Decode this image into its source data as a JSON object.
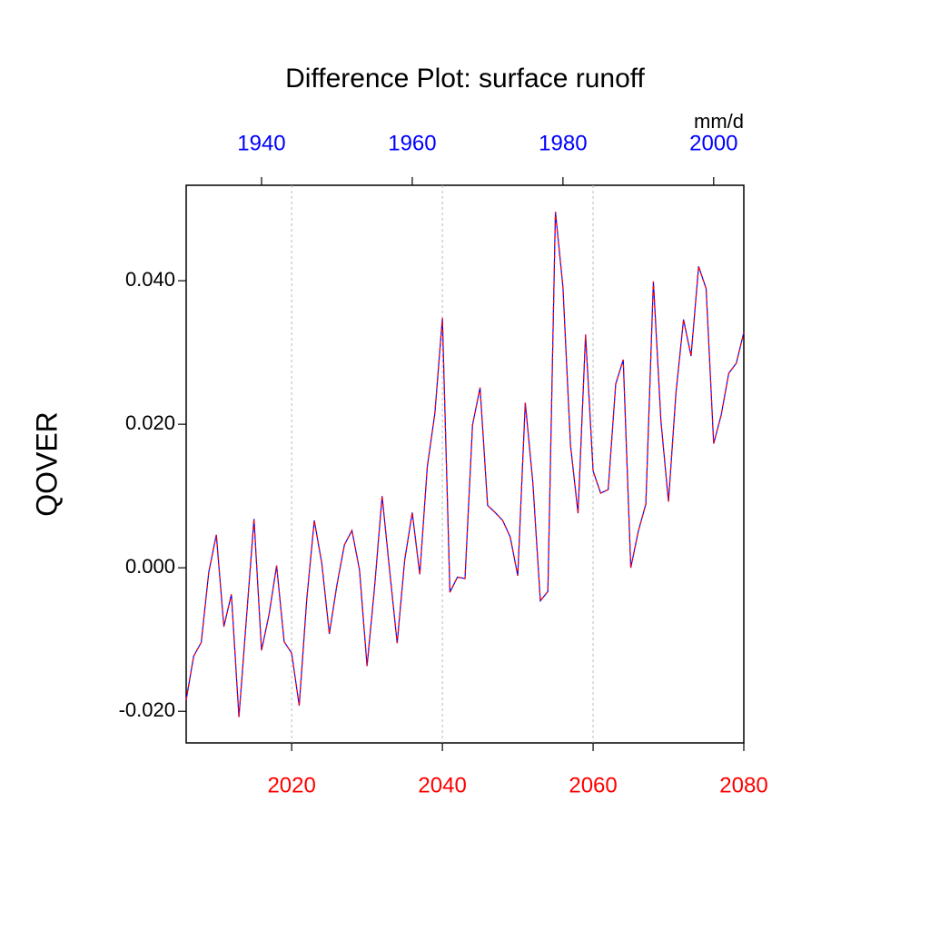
{
  "chart_data": {
    "type": "line",
    "title": "Difference Plot: surface runoff",
    "y_label": "QOVER",
    "units_label": "mm/d",
    "x": [
      2006,
      2007,
      2008,
      2009,
      2010,
      2011,
      2012,
      2013,
      2014,
      2015,
      2016,
      2017,
      2018,
      2019,
      2020,
      2021,
      2022,
      2023,
      2024,
      2025,
      2026,
      2027,
      2028,
      2029,
      2030,
      2031,
      2032,
      2033,
      2034,
      2035,
      2036,
      2037,
      2038,
      2039,
      2040,
      2041,
      2042,
      2043,
      2044,
      2045,
      2046,
      2047,
      2048,
      2049,
      2050,
      2051,
      2052,
      2053,
      2054,
      2055,
      2056,
      2057,
      2058,
      2059,
      2060,
      2061,
      2062,
      2063,
      2064,
      2065,
      2066,
      2067,
      2068,
      2069,
      2070,
      2071,
      2072,
      2073,
      2074,
      2075,
      2076,
      2077,
      2078,
      2079,
      2080
    ],
    "series": [
      {
        "color": "#0000ff",
        "values": [
          -0.0184,
          -0.0123,
          -0.0104,
          -0.0006,
          0.0046,
          -0.0082,
          -0.0037,
          -0.0208,
          -0.007,
          0.0068,
          -0.0115,
          -0.0065,
          0.0003,
          -0.0103,
          -0.0119,
          -0.0192,
          -0.0044,
          0.0066,
          0.0006,
          -0.0092,
          -0.0024,
          0.0032,
          0.0052,
          -0.0003,
          -0.0137,
          -0.0027,
          0.01,
          -0.0004,
          -0.0105,
          0.0011,
          0.0077,
          -0.0009,
          0.0141,
          0.0215,
          0.0348,
          -0.0034,
          -0.0013,
          -0.0015,
          0.0199,
          0.0251,
          0.0087,
          0.0077,
          0.0066,
          0.0043,
          -0.0011,
          0.023,
          0.0119,
          -0.0046,
          -0.0033,
          0.0496,
          0.0391,
          0.0171,
          0.0076,
          0.0325,
          0.0135,
          0.0104,
          0.0109,
          0.0256,
          0.029,
          0.0,
          0.0051,
          0.0089,
          0.0399,
          0.0205,
          0.0092,
          0.0244,
          0.0346,
          0.0295,
          0.042,
          0.0389,
          0.0173,
          0.0213,
          0.0271,
          0.0285,
          0.0328
        ]
      },
      {
        "color": "#ff0000",
        "dashed": true,
        "values": [
          -0.0184,
          -0.0123,
          -0.0104,
          -0.0006,
          0.0046,
          -0.0082,
          -0.0037,
          -0.0208,
          -0.007,
          0.0068,
          -0.0115,
          -0.0065,
          0.0003,
          -0.0103,
          -0.0119,
          -0.0192,
          -0.0044,
          0.0066,
          0.0006,
          -0.0092,
          -0.0024,
          0.0032,
          0.0052,
          -0.0003,
          -0.0137,
          -0.0027,
          0.01,
          -0.0004,
          -0.0105,
          0.0011,
          0.0077,
          -0.0009,
          0.0141,
          0.0215,
          0.0348,
          -0.0034,
          -0.0013,
          -0.0015,
          0.0199,
          0.0251,
          0.0087,
          0.0077,
          0.0066,
          0.0043,
          -0.0011,
          0.023,
          0.0119,
          -0.0046,
          -0.0033,
          0.0496,
          0.0391,
          0.0171,
          0.0076,
          0.0325,
          0.0135,
          0.0104,
          0.0109,
          0.0256,
          0.029,
          0.0,
          0.0051,
          0.0089,
          0.0399,
          0.0205,
          0.0092,
          0.0244,
          0.0346,
          0.0295,
          0.042,
          0.0389,
          0.0173,
          0.0213,
          0.0271,
          0.0285,
          0.0328
        ]
      }
    ],
    "xlim": [
      2006,
      2080
    ],
    "xticks": [
      2020,
      2040,
      2060,
      2080
    ],
    "xtick_color": "#ff0000",
    "x2lim": [
      1930,
      2004
    ],
    "x2ticks": [
      1940,
      1960,
      1980,
      2000
    ],
    "x2tick_color": "#0000ff",
    "ylim": [
      -0.0244,
      0.0533
    ],
    "yticks": [
      {
        "value": -0.02,
        "label": "-0.020"
      },
      {
        "value": 0,
        "label": "0.000"
      },
      {
        "value": 0.02,
        "label": "0.020"
      },
      {
        "value": 0.04,
        "label": "0.040"
      }
    ],
    "grid": true
  }
}
